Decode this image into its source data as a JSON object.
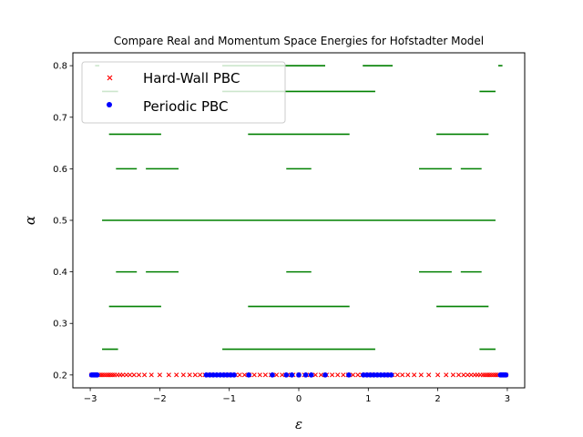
{
  "chart_data": {
    "type": "scatter",
    "title": "Compare Real and Momentum Space Energies for Hofstadter Model",
    "xlabel": "ε",
    "ylabel": "α",
    "xlim": [
      -3.25,
      3.25
    ],
    "ylim": [
      0.175,
      0.825
    ],
    "xticks": [
      -3,
      -2,
      -1,
      0,
      1,
      2,
      3
    ],
    "xtick_labels": [
      "−3",
      "−2",
      "−1",
      "0",
      "1",
      "2",
      "3"
    ],
    "yticks": [
      0.2,
      0.3,
      0.4,
      0.5,
      0.6,
      0.7,
      0.8
    ],
    "ytick_labels": [
      "0.2",
      "0.3",
      "0.4",
      "0.5",
      "0.6",
      "0.7",
      "0.8"
    ],
    "grid": false,
    "legend": {
      "location": "upper-left",
      "entries": [
        {
          "label": "Hard-Wall PBC",
          "color": "#ff0000",
          "marker": "x"
        },
        {
          "label": "Periodic PBC",
          "color": "#0000ff",
          "marker": "o"
        }
      ]
    },
    "band_color": "#008000",
    "bands": [
      {
        "alpha": 0.25,
        "ranges": [
          [
            -2.83,
            -2.6
          ],
          [
            -1.1,
            1.1
          ],
          [
            2.6,
            2.83
          ]
        ]
      },
      {
        "alpha": 0.333,
        "ranges": [
          [
            -2.73,
            -1.98
          ],
          [
            -0.73,
            0.73
          ],
          [
            1.98,
            2.73
          ]
        ]
      },
      {
        "alpha": 0.4,
        "ranges": [
          [
            -2.63,
            -2.33
          ],
          [
            -2.2,
            -1.73
          ],
          [
            -0.18,
            0.18
          ],
          [
            1.73,
            2.2
          ],
          [
            2.33,
            2.63
          ]
        ]
      },
      {
        "alpha": 0.5,
        "ranges": [
          [
            -2.83,
            2.83
          ]
        ]
      },
      {
        "alpha": 0.6,
        "ranges": [
          [
            -2.63,
            -2.33
          ],
          [
            -2.2,
            -1.73
          ],
          [
            -0.18,
            0.18
          ],
          [
            1.73,
            2.2
          ],
          [
            2.33,
            2.63
          ]
        ]
      },
      {
        "alpha": 0.667,
        "ranges": [
          [
            -2.73,
            -1.98
          ],
          [
            -0.73,
            0.73
          ],
          [
            1.98,
            2.73
          ]
        ]
      },
      {
        "alpha": 0.75,
        "ranges": [
          [
            -2.83,
            -2.6
          ],
          [
            -1.1,
            1.1
          ],
          [
            2.6,
            2.83
          ]
        ]
      },
      {
        "alpha": 0.8,
        "ranges": [
          [
            -2.93,
            -2.87
          ],
          [
            -1.1,
            0.38
          ],
          [
            0.92,
            1.35
          ],
          [
            2.87,
            2.93
          ]
        ]
      }
    ],
    "series": [
      {
        "name": "Hard-Wall PBC",
        "marker": "x",
        "color": "#ff0000",
        "y": 0.2,
        "x": [
          -2.98,
          -2.95,
          -2.92,
          -2.89,
          -2.86,
          -2.83,
          -2.8,
          -2.77,
          -2.74,
          -2.71,
          -2.68,
          -2.65,
          -2.61,
          -2.57,
          -2.53,
          -2.48,
          -2.43,
          -2.37,
          -2.3,
          -2.22,
          -2.12,
          -2.0,
          -1.87,
          -1.76,
          -1.66,
          -1.57,
          -1.49,
          -1.42,
          -1.35,
          -1.28,
          -1.21,
          -1.15,
          -1.09,
          -1.03,
          -0.97,
          -0.91,
          -0.85,
          -0.78,
          -0.71,
          -0.64,
          -0.56,
          -0.48,
          -0.4,
          -0.32,
          -0.24,
          -0.16,
          -0.08,
          0.0,
          0.08,
          0.16,
          0.24,
          0.32,
          0.4,
          0.48,
          0.56,
          0.64,
          0.71,
          0.78,
          0.85,
          0.91,
          0.97,
          1.03,
          1.09,
          1.15,
          1.21,
          1.28,
          1.35,
          1.42,
          1.49,
          1.57,
          1.66,
          1.76,
          1.87,
          2.0,
          2.12,
          2.22,
          2.3,
          2.37,
          2.43,
          2.48,
          2.53,
          2.57,
          2.61,
          2.65,
          2.68,
          2.71,
          2.74,
          2.77,
          2.8,
          2.83,
          2.86,
          2.89,
          2.92,
          2.95,
          2.98
        ]
      },
      {
        "name": "Periodic PBC",
        "marker": "o",
        "color": "#0000ff",
        "y": 0.2,
        "x": [
          -2.98,
          -2.96,
          -2.94,
          -2.92,
          -2.9,
          -1.33,
          -1.28,
          -1.23,
          -1.18,
          -1.13,
          -1.08,
          -1.03,
          -0.98,
          -0.93,
          -0.72,
          -0.38,
          -0.18,
          -0.1,
          0.0,
          0.1,
          0.18,
          0.38,
          0.72,
          0.93,
          0.98,
          1.03,
          1.08,
          1.13,
          1.18,
          1.23,
          1.28,
          1.33,
          2.9,
          2.92,
          2.94,
          2.96,
          2.98
        ]
      }
    ]
  }
}
